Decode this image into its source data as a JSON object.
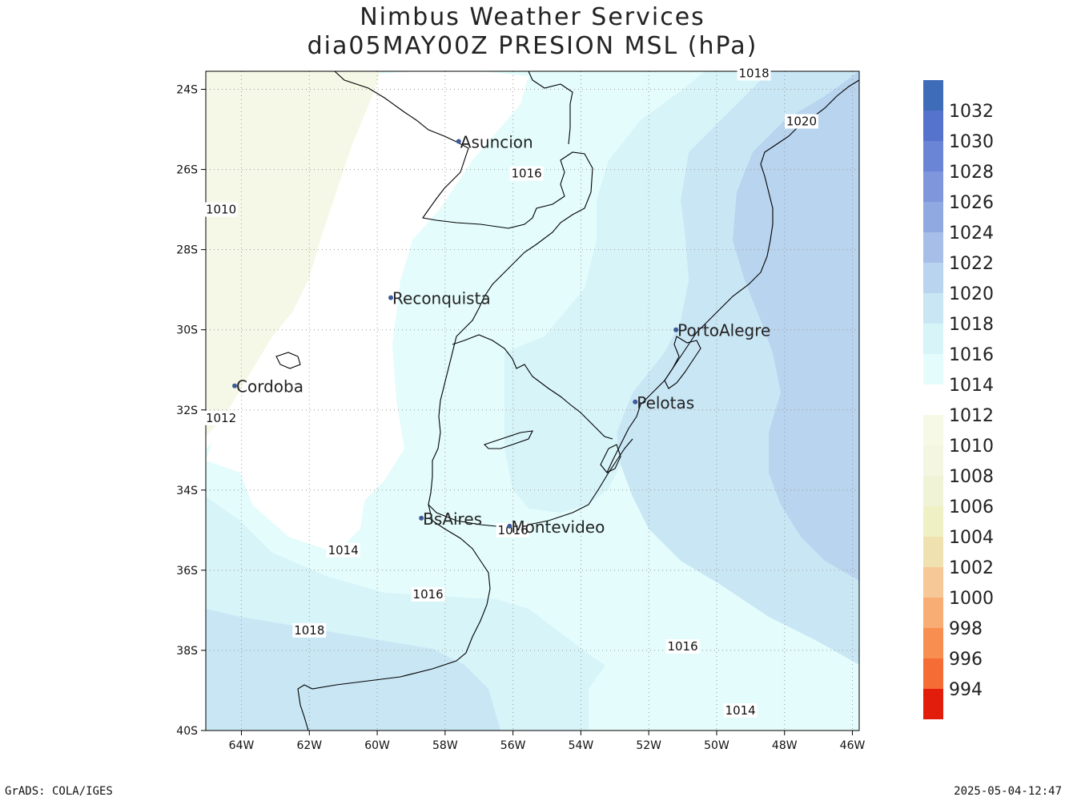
{
  "title_line1": "Nimbus Weather Services",
  "title_line2": "dia05MAY00Z PRESION MSL (hPa)",
  "footer_left": "GrADS: COLA/IGES",
  "footer_right": "2025-05-04-12:47",
  "lat_labels": [
    "24S",
    "26S",
    "28S",
    "30S",
    "32S",
    "34S",
    "36S",
    "38S",
    "40S"
  ],
  "lon_labels": [
    "64W",
    "62W",
    "60W",
    "58W",
    "56W",
    "54W",
    "52W",
    "50W",
    "48W",
    "46W"
  ],
  "cities": [
    {
      "name": "Asuncion",
      "lon": -57.6,
      "lat": -25.3
    },
    {
      "name": "Reconquista",
      "lon": -59.6,
      "lat": -29.2
    },
    {
      "name": "PortoAlegre",
      "lon": -51.2,
      "lat": -30.0
    },
    {
      "name": "Cordoba",
      "lon": -64.2,
      "lat": -31.4
    },
    {
      "name": "Pelotas",
      "lon": -52.4,
      "lat": -31.8
    },
    {
      "name": "BsAires",
      "lon": -58.7,
      "lat": -34.7
    },
    {
      "name": "Montevideo",
      "lon": -56.1,
      "lat": -34.9
    }
  ],
  "contour_labels": [
    {
      "text": "1016",
      "lon": -55.6,
      "lat": -26.1
    },
    {
      "text": "1010",
      "lon": -64.6,
      "lat": -27.0
    },
    {
      "text": "1018",
      "lon": -48.9,
      "lat": -23.6
    },
    {
      "text": "1020",
      "lon": -47.5,
      "lat": -24.8
    },
    {
      "text": "1012",
      "lon": -64.6,
      "lat": -32.2
    },
    {
      "text": "1014",
      "lon": -61.0,
      "lat": -35.5
    },
    {
      "text": "1016",
      "lon": -56.0,
      "lat": -35.0
    },
    {
      "text": "1016",
      "lon": -58.5,
      "lat": -36.6
    },
    {
      "text": "1018",
      "lon": -62.0,
      "lat": -37.5
    },
    {
      "text": "1016",
      "lon": -51.0,
      "lat": -37.9
    },
    {
      "text": "1014",
      "lon": -49.3,
      "lat": -39.5
    }
  ],
  "legend": [
    {
      "value": "1032",
      "color": "#3e6cb8"
    },
    {
      "value": "1030",
      "color": "#5572cc"
    },
    {
      "value": "1028",
      "color": "#6a84d6"
    },
    {
      "value": "1026",
      "color": "#7f96dd"
    },
    {
      "value": "1024",
      "color": "#91a9e1"
    },
    {
      "value": "1022",
      "color": "#a7bfe8"
    },
    {
      "value": "1020",
      "color": "#b8d4ee"
    },
    {
      "value": "1018",
      "color": "#c9e6f5"
    },
    {
      "value": "1016",
      "color": "#d7f4f9"
    },
    {
      "value": "1014",
      "color": "#e4fcfc"
    },
    {
      "value": "1012",
      "color": "#ffffff"
    },
    {
      "value": "1010",
      "color": "#f7f9e7"
    },
    {
      "value": "1008",
      "color": "#f4f6e1"
    },
    {
      "value": "1006",
      "color": "#f1f3d7"
    },
    {
      "value": "1004",
      "color": "#eff0c4"
    },
    {
      "value": "1002",
      "color": "#f0e1b1"
    },
    {
      "value": "1000",
      "color": "#f6c897"
    },
    {
      "value": "998",
      "color": "#f8ad74"
    },
    {
      "value": "996",
      "color": "#f88f50"
    },
    {
      "value": "994",
      "color": "#f56c35"
    },
    {
      "value": "",
      "color": "#e21d0b"
    }
  ],
  "colors": {
    "fill_1010": "#f5f8e6",
    "fill_1012": "#ffffff",
    "fill_1014": "#e4fcfc",
    "fill_1016": "#d7f4f9",
    "fill_1018": "#c9e6f5",
    "fill_1020": "#b8d4ee",
    "city_marker": "#3d5a99",
    "coastline": "#000000",
    "grid": "#999999"
  }
}
